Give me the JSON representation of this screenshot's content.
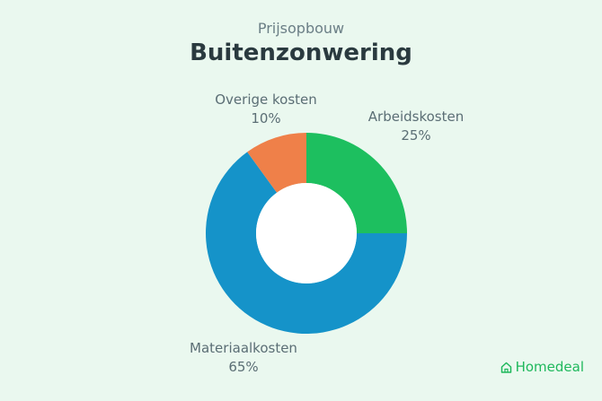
{
  "chart_data": {
    "type": "pie",
    "subtitle": "Prijsopbouw",
    "title": "Buitenzonwering",
    "slices": [
      {
        "label": "Arbeidskosten",
        "value": 25,
        "value_label": "25%",
        "color": "#1dbf5f"
      },
      {
        "label": "Materiaalkosten",
        "value": 65,
        "value_label": "65%",
        "color": "#1593c9"
      },
      {
        "label": "Overige kosten",
        "value": 10,
        "value_label": "10%",
        "color": "#ef8049"
      }
    ],
    "donut": true
  },
  "brand": {
    "name": "Homedeal",
    "icon": "house-icon",
    "color": "#1fb85c"
  }
}
